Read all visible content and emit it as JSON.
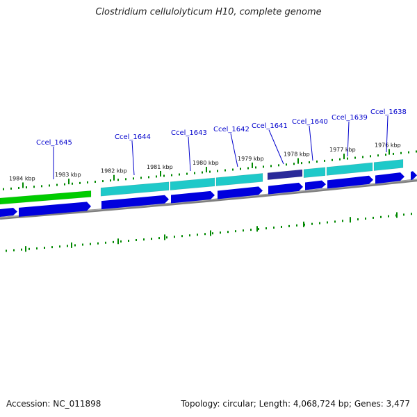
{
  "title": "Clostridium cellulolyticum H10, complete genome",
  "footer": {
    "accession": "Accession: NC_011898",
    "summary": "Topology: circular; Length: 4,068,724 bp; Genes: 3,477"
  },
  "colors": {
    "forward_strand": "#00cc00",
    "cds_forward": "#1fc9c9",
    "cds_highlight": "#2a2a99",
    "cds_arrow": "#0000dd",
    "backbone": "#808080",
    "tick": "#008800",
    "gene_label": "#0000cc"
  },
  "kbp_ticks": [
    "1984 kbp",
    "1983 kbp",
    "1982 kbp",
    "1981 kbp",
    "1980 kbp",
    "1979 kbp",
    "1978 kbp",
    "1977 kbp",
    "1976 kbp"
  ],
  "genes": [
    "Ccel_1645",
    "Ccel_1644",
    "Ccel_1643",
    "Ccel_1642",
    "Ccel_1641",
    "Ccel_1640",
    "Ccel_1639",
    "Ccel_1638"
  ]
}
